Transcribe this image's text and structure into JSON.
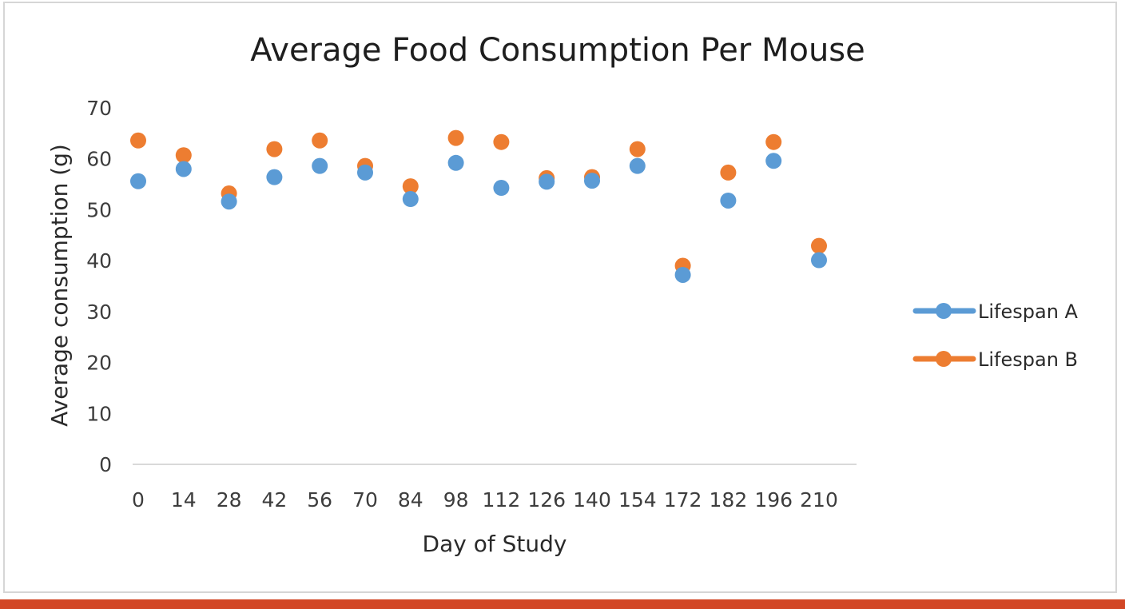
{
  "colors": {
    "series_a": "#5b9bd5",
    "series_b": "#ed7d31",
    "axis": "#d9d9d9",
    "bottom_bar": "#d24726"
  },
  "chart_data": {
    "type": "scatter",
    "title": "Average Food Consumption Per Mouse",
    "xlabel": "Day of Study",
    "ylabel": "Average consumption (g)",
    "categories": [
      "0",
      "14",
      "28",
      "42",
      "56",
      "70",
      "84",
      "98",
      "112",
      "126",
      "140",
      "154",
      "172",
      "182",
      "196",
      "210"
    ],
    "ylim": [
      0,
      70
    ],
    "yticks": [
      "0",
      "10",
      "20",
      "30",
      "40",
      "50",
      "60",
      "70"
    ],
    "grid": false,
    "legend_position": "right",
    "series": [
      {
        "name": "Lifespan A",
        "color": "#5b9bd5",
        "values": [
          55.6,
          58.0,
          51.6,
          56.4,
          58.6,
          57.3,
          52.1,
          59.2,
          54.3,
          55.5,
          55.7,
          58.6,
          37.2,
          51.8,
          59.6,
          40.1
        ]
      },
      {
        "name": "Lifespan B",
        "color": "#ed7d31",
        "values": [
          63.6,
          60.7,
          53.2,
          61.9,
          63.6,
          58.6,
          54.6,
          64.1,
          63.3,
          56.2,
          56.4,
          61.9,
          39.0,
          57.3,
          63.3,
          42.9
        ]
      }
    ]
  }
}
